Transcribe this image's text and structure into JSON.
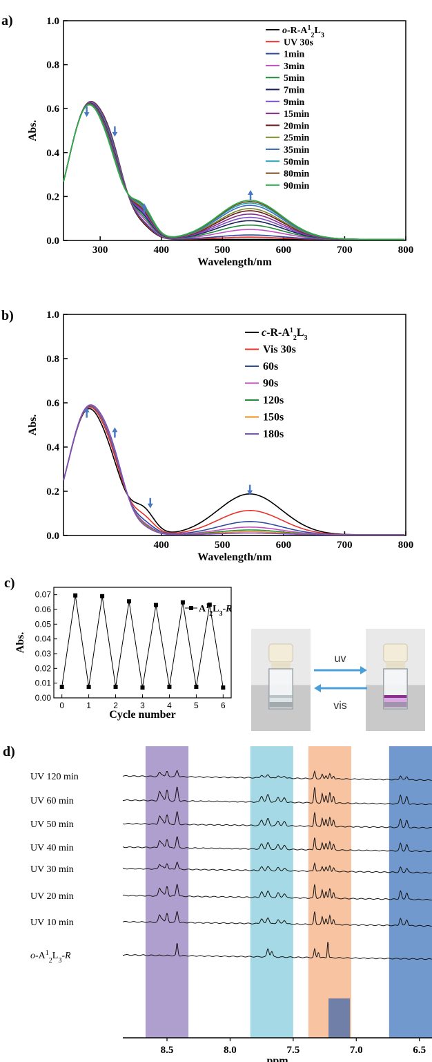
{
  "panels": {
    "a": {
      "label": "a)"
    },
    "b": {
      "label": "b)"
    },
    "c": {
      "label": "c)"
    },
    "d": {
      "label": "d)"
    }
  },
  "photo": {
    "arrow_top": "uv",
    "arrow_bottom": "vis"
  },
  "chart_data": [
    {
      "panel": "a",
      "type": "line",
      "xlabel": "Wavelength/nm",
      "ylabel": "Abs.",
      "xlim": [
        240,
        800
      ],
      "ylim": [
        0.0,
        1.0
      ],
      "xticks": [
        "300",
        "400",
        "500",
        "600",
        "700",
        "800"
      ],
      "yticks": [
        "0.0",
        "0.2",
        "0.4",
        "0.6",
        "0.8",
        "1.0"
      ],
      "legend_position": "top-right",
      "legend_title": "o-R-A¹₂L₃",
      "series": [
        {
          "name": "o-R-A¹₂L₃",
          "color": "#000000",
          "peak_abs": 0.0
        },
        {
          "name": "UV 30s",
          "color": "#e8312b",
          "peak_abs": 0.01
        },
        {
          "name": "1min",
          "color": "#2e4a9e",
          "peak_abs": 0.02
        },
        {
          "name": "3min",
          "color": "#c04fbf",
          "peak_abs": 0.045
        },
        {
          "name": "5min",
          "color": "#1f8c3a",
          "peak_abs": 0.065
        },
        {
          "name": "7min",
          "color": "#1a1f5c",
          "peak_abs": 0.085
        },
        {
          "name": "9min",
          "color": "#7a4fc9",
          "peak_abs": 0.1
        },
        {
          "name": "15min",
          "color": "#8a2b8f",
          "peak_abs": 0.115
        },
        {
          "name": "20min",
          "color": "#6b1a1a",
          "peak_abs": 0.13
        },
        {
          "name": "25min",
          "color": "#7a8a2b",
          "peak_abs": 0.14
        },
        {
          "name": "35min",
          "color": "#3e6fbf",
          "peak_abs": 0.155
        },
        {
          "name": "50min",
          "color": "#2aa2b5",
          "peak_abs": 0.165
        },
        {
          "name": "80min",
          "color": "#7a4a1a",
          "peak_abs": 0.172
        },
        {
          "name": "90min",
          "color": "#2db04a",
          "peak_abs": 0.178
        }
      ]
    },
    {
      "panel": "b",
      "type": "line",
      "xlabel": "Wavelength/nm",
      "ylabel": "Abs.",
      "xlim": [
        240,
        800
      ],
      "ylim": [
        0.0,
        1.0
      ],
      "xticks": [
        "400",
        "500",
        "600",
        "700",
        "800"
      ],
      "yticks": [
        "0.0",
        "0.2",
        "0.4",
        "0.6",
        "0.8",
        "1.0"
      ],
      "legend_position": "top-right",
      "series": [
        {
          "name": "c-R-A¹₂L₃",
          "color": "#000000",
          "peak_abs": 0.185
        },
        {
          "name": "Vis 30s",
          "color": "#e8312b",
          "peak_abs": 0.11
        },
        {
          "name": "60s",
          "color": "#2e4a9e",
          "peak_abs": 0.06
        },
        {
          "name": "90s",
          "color": "#c04fbf",
          "peak_abs": 0.035
        },
        {
          "name": "120s",
          "color": "#1f8c3a",
          "peak_abs": 0.022
        },
        {
          "name": "150s",
          "color": "#f28a1a",
          "peak_abs": 0.014
        },
        {
          "name": "180s",
          "color": "#7a4fc9",
          "peak_abs": 0.008
        }
      ]
    },
    {
      "panel": "c",
      "type": "line",
      "xlabel": "Cycle number",
      "ylabel": "Abs.",
      "xlim": [
        -0.3,
        6.3
      ],
      "ylim": [
        0.0,
        0.075
      ],
      "xticks": [
        "0",
        "1",
        "2",
        "3",
        "4",
        "5",
        "6"
      ],
      "yticks": [
        "0.00",
        "0.01",
        "0.02",
        "0.03",
        "0.04",
        "0.05",
        "0.06",
        "0.07"
      ],
      "legend": "A¹₂L₃-R",
      "x": [
        0,
        0.5,
        1,
        1.5,
        2,
        2.5,
        3,
        3.5,
        4,
        4.5,
        5,
        5.5,
        6
      ],
      "y": [
        0.0075,
        0.0695,
        0.0075,
        0.069,
        0.0075,
        0.0655,
        0.007,
        0.063,
        0.0075,
        0.0648,
        0.0075,
        0.0632,
        0.007
      ]
    },
    {
      "panel": "d",
      "type": "line",
      "xlabel": "ppm",
      "xlim": [
        8.85,
        6.4
      ],
      "xticks": [
        "8.5",
        "8.0",
        "7.5",
        "7.0",
        "6.5"
      ],
      "traces": [
        "UV 120 min",
        "UV 60 min",
        "UV 50 min",
        "UV 40 min",
        "UV 30 min",
        "UV 20 min",
        "UV 10 min",
        "o-A¹₂L₃-R"
      ],
      "highlight_regions": [
        {
          "from": 8.67,
          "to": 8.33,
          "color": "#9b87c2"
        },
        {
          "from": 7.84,
          "to": 7.5,
          "color": "#8fd0df"
        },
        {
          "from": 7.38,
          "to": 7.04,
          "color": "#f6b48a"
        },
        {
          "from": 6.74,
          "to": 6.4,
          "color": "#4f7fc2"
        }
      ]
    }
  ]
}
